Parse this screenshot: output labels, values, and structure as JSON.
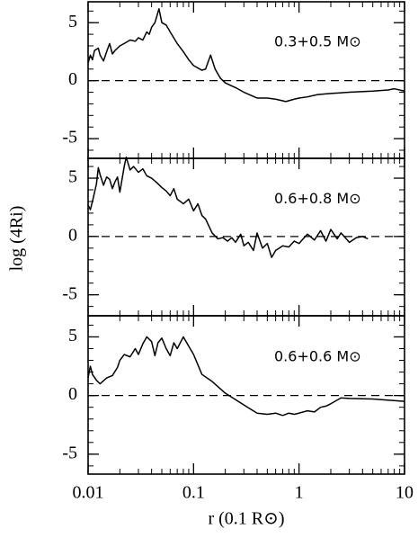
{
  "chart_data": [
    {
      "type": "line",
      "label": "0.3+0.5 M⊙",
      "xscale": "log",
      "xlim": [
        0.01,
        10
      ],
      "xticks": [
        0.01,
        0.1,
        1,
        10
      ],
      "ylim": [
        -6.7,
        6.8
      ],
      "yticks": [
        -5,
        0,
        5
      ],
      "hline": 0,
      "color": "#000000",
      "x": [
        0.01,
        0.0105,
        0.011,
        0.0115,
        0.0125,
        0.013,
        0.014,
        0.015,
        0.016,
        0.017,
        0.018,
        0.02,
        0.022,
        0.025,
        0.028,
        0.03,
        0.033,
        0.036,
        0.038,
        0.04,
        0.043,
        0.045,
        0.047,
        0.05,
        0.055,
        0.06,
        0.07,
        0.08,
        0.09,
        0.1,
        0.12,
        0.13,
        0.145,
        0.16,
        0.18,
        0.2,
        0.25,
        0.3,
        0.4,
        0.5,
        0.6,
        0.75,
        0.9,
        1.0,
        1.2,
        1.5,
        2,
        3,
        5,
        7,
        8,
        10
      ],
      "values": [
        1.5,
        2.2,
        1.8,
        2.6,
        2.8,
        2.2,
        1.7,
        2.5,
        3.2,
        2.3,
        2.6,
        3.0,
        3.2,
        3.5,
        3.4,
        3.7,
        3.5,
        4.2,
        4.0,
        4.6,
        5.0,
        5.6,
        6.2,
        5.0,
        4.8,
        4.2,
        3.2,
        2.5,
        1.8,
        1.3,
        0.9,
        1.0,
        2.2,
        1.0,
        0.2,
        -0.2,
        -0.6,
        -1.0,
        -1.5,
        -1.5,
        -1.6,
        -1.8,
        -1.6,
        -1.5,
        -1.4,
        -1.2,
        -1.1,
        -1.0,
        -0.9,
        -0.8,
        -0.7,
        -0.9
      ]
    },
    {
      "type": "line",
      "label": "0.6+0.8 M⊙",
      "xscale": "log",
      "xlim": [
        0.01,
        10
      ],
      "xticks": [
        0.01,
        0.1,
        1,
        10
      ],
      "ylim": [
        -6.8,
        6.7
      ],
      "yticks": [
        -5,
        0,
        5
      ],
      "hline": 0,
      "color": "#000000",
      "ylabel": "log (4Ri)",
      "x": [
        0.01,
        0.0105,
        0.011,
        0.012,
        0.0125,
        0.013,
        0.014,
        0.015,
        0.016,
        0.017,
        0.018,
        0.019,
        0.02,
        0.022,
        0.023,
        0.025,
        0.027,
        0.03,
        0.033,
        0.036,
        0.04,
        0.045,
        0.05,
        0.055,
        0.06,
        0.065,
        0.07,
        0.075,
        0.08,
        0.09,
        0.1,
        0.11,
        0.12,
        0.13,
        0.15,
        0.17,
        0.19,
        0.21,
        0.23,
        0.25,
        0.28,
        0.3,
        0.33,
        0.37,
        0.4,
        0.45,
        0.5,
        0.55,
        0.6,
        0.7,
        0.8,
        0.9,
        1.0,
        1.2,
        1.4,
        1.6,
        1.8,
        2.0,
        2.3,
        2.5,
        3,
        3.5,
        4,
        4.5
      ],
      "values": [
        2.7,
        2.3,
        3.0,
        4.5,
        5.9,
        5.3,
        4.4,
        5.1,
        4.9,
        4.1,
        4.7,
        5.1,
        3.8,
        6.0,
        6.8,
        5.7,
        6.0,
        5.5,
        5.8,
        5.2,
        5.0,
        4.6,
        4.2,
        3.9,
        3.5,
        4.1,
        3.2,
        3.0,
        2.8,
        3.2,
        2.2,
        2.8,
        1.8,
        1.5,
        0.3,
        -0.2,
        -0.1,
        -0.4,
        -0.1,
        -0.5,
        0.2,
        -0.8,
        -0.5,
        -1.2,
        0.3,
        -1.0,
        -0.6,
        -1.8,
        -1.2,
        -0.8,
        -0.9,
        -0.4,
        -0.6,
        0.2,
        -0.3,
        0.5,
        -0.4,
        0.6,
        -0.2,
        0.3,
        -0.5,
        -0.1,
        0.0,
        -0.2
      ]
    },
    {
      "type": "line",
      "label": "0.6+0.6 M⊙",
      "xscale": "log",
      "xlim": [
        0.01,
        10
      ],
      "xticks": [
        0.01,
        0.1,
        1,
        10
      ],
      "ylim": [
        -6.7,
        6.8
      ],
      "yticks": [
        -5,
        0,
        5
      ],
      "hline": 0,
      "color": "#000000",
      "xlabel": "r (0.1 R⊙)",
      "x": [
        0.01,
        0.0105,
        0.011,
        0.012,
        0.013,
        0.015,
        0.017,
        0.019,
        0.02,
        0.022,
        0.025,
        0.028,
        0.03,
        0.033,
        0.036,
        0.04,
        0.043,
        0.046,
        0.05,
        0.055,
        0.06,
        0.065,
        0.07,
        0.08,
        0.1,
        0.12,
        0.15,
        0.2,
        0.3,
        0.4,
        0.5,
        0.6,
        0.7,
        0.8,
        0.9,
        1.0,
        1.2,
        1.4,
        1.6,
        1.8,
        2.0,
        2.5,
        3,
        5,
        10
      ],
      "values": [
        1.5,
        2.5,
        1.8,
        1.3,
        1.0,
        1.5,
        1.7,
        2.4,
        3.0,
        3.5,
        3.3,
        4.0,
        3.5,
        4.4,
        5.0,
        4.6,
        3.4,
        4.5,
        4.9,
        4.0,
        3.4,
        4.5,
        4.0,
        5.0,
        3.5,
        1.8,
        1.2,
        0.2,
        -0.8,
        -1.5,
        -1.6,
        -1.5,
        -1.7,
        -1.5,
        -1.6,
        -1.5,
        -1.3,
        -1.4,
        -1.0,
        -0.9,
        -0.7,
        -0.2,
        -0.25,
        -0.3,
        -0.5
      ]
    }
  ]
}
